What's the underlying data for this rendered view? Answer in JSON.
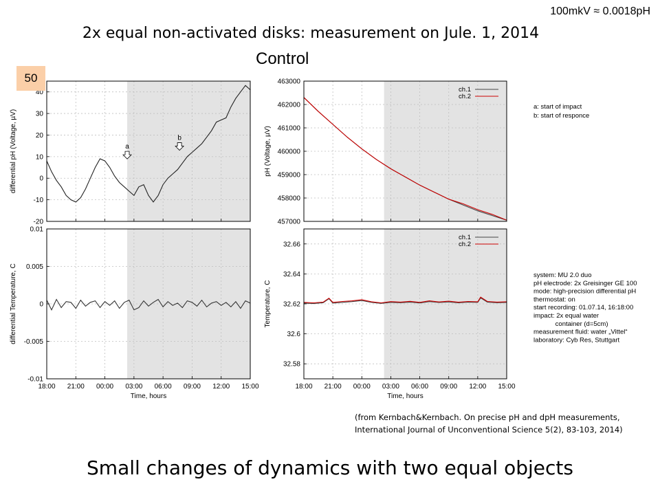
{
  "slide": {
    "scale_note": "100mkV ≈ 0.0018pH",
    "title": "2x equal non-activated disks: measurement on Jule. 1, 2014",
    "subtitle": "Control",
    "slide_number": "50",
    "citation_line1": "(from Kernbach&Kernbach. On precise pH and dpH measurements,",
    "citation_line2": "International Journal of Unconventional Science 5(2), 83-103,  2014)",
    "caption": "Small changes of dynamics with two equal objects"
  },
  "notes": {
    "impact_a": "a: start of impact",
    "impact_b": "b: start of responce",
    "system": [
      "system: MU 2.0 duo",
      "pH electrode: 2x Greisinger GE 100",
      "mode: high-precision differential pH",
      "thermostat: on",
      "start recording: 01.07.14, 16:18:00",
      "impact: 2x equal water",
      "            container (d=5cm)",
      "measurement fluid: water „Vittel“",
      "laboratory: Cyb Res, Stuttgart"
    ]
  },
  "chart_data": [
    {
      "id": "dph-voltage",
      "type": "line",
      "ylabel": "differential pH (Voltage, µV)",
      "x_ticks": [
        "18:00",
        "21:00",
        "00:00",
        "03:00",
        "06:00",
        "09:00",
        "12:00",
        "15:00"
      ],
      "xlim": [
        0,
        21
      ],
      "ylim": [
        -20,
        45
      ],
      "y_ticks": [
        -20,
        -10,
        0,
        10,
        20,
        30,
        40
      ],
      "y_tick_labels": [
        "-20",
        "-10",
        "0",
        "10",
        "20",
        "30",
        "40"
      ],
      "shaded_from": 8.3,
      "annotations": [
        {
          "label": "a",
          "x": 8.3,
          "y": 8
        },
        {
          "label": "b",
          "x": 13.7,
          "y": 12
        }
      ],
      "series": [
        {
          "color": "#222222",
          "x": [
            0,
            0.5,
            1,
            1.5,
            2,
            2.5,
            3,
            3.5,
            4,
            4.5,
            5,
            5.5,
            6,
            6.5,
            7,
            7.5,
            8,
            8.5,
            9,
            9.5,
            10,
            10.5,
            11,
            11.5,
            12,
            12.5,
            13,
            13.5,
            14,
            14.5,
            15,
            15.5,
            16,
            16.5,
            17,
            17.5,
            18,
            18.5,
            19,
            19.5,
            20,
            20.5,
            21
          ],
          "y": [
            8,
            3,
            -1,
            -4,
            -8,
            -10,
            -11,
            -9,
            -5,
            0,
            5,
            9,
            8,
            5,
            1,
            -2,
            -4,
            -6,
            -8,
            -4,
            -3,
            -8,
            -11,
            -8,
            -3,
            0,
            2,
            4,
            7,
            10,
            12,
            14,
            16,
            19,
            22,
            26,
            27,
            28,
            33,
            37,
            40,
            43,
            41
          ]
        }
      ]
    },
    {
      "id": "ph-voltage",
      "type": "line",
      "ylabel": "pH (Voltage, µV)",
      "x_ticks": [
        "18:00",
        "21:00",
        "00:00",
        "03:00",
        "06:00",
        "09:00",
        "12:00",
        "15:00"
      ],
      "xlim": [
        0,
        21
      ],
      "ylim": [
        457000,
        463000
      ],
      "y_ticks": [
        457000,
        458000,
        459000,
        460000,
        461000,
        462000,
        463000
      ],
      "y_tick_labels": [
        "457000",
        "458000",
        "459000",
        "460000",
        "461000",
        "462000",
        "463000"
      ],
      "shaded_from": 8.3,
      "legend": [
        "ch.1",
        "ch.2"
      ],
      "series": [
        {
          "name": "ch.1",
          "color": "#444444",
          "x": [
            0,
            1.5,
            3,
            4.5,
            6,
            7.5,
            9,
            10.5,
            12,
            13.5,
            15,
            16.5,
            18,
            19.5,
            21
          ],
          "y": [
            462300,
            461700,
            461150,
            460600,
            460100,
            459650,
            459250,
            458900,
            458550,
            458250,
            457950,
            457700,
            457450,
            457250,
            457050
          ]
        },
        {
          "name": "ch.2",
          "color": "#cc0000",
          "x": [
            0,
            1.5,
            3,
            4.5,
            6,
            7.5,
            9,
            10.5,
            12,
            13.5,
            15,
            16.5,
            18,
            19.5,
            21
          ],
          "y": [
            462300,
            461700,
            461150,
            460600,
            460100,
            459650,
            459250,
            458900,
            458550,
            458250,
            457950,
            457750,
            457500,
            457300,
            457050
          ]
        }
      ]
    },
    {
      "id": "d-temperature",
      "type": "line",
      "ylabel": "differential Temperature, C",
      "x_ticks": [
        "18:00",
        "21:00",
        "00:00",
        "03:00",
        "06:00",
        "09:00",
        "12:00",
        "15:00"
      ],
      "x_axis_label": "Time, hours",
      "xlim": [
        0,
        21
      ],
      "ylim": [
        -0.01,
        0.01
      ],
      "y_ticks": [
        -0.01,
        -0.005,
        0,
        0.005,
        0.01
      ],
      "y_tick_labels": [
        "-0.01",
        "-0.005",
        "0",
        "0.005",
        "0.01"
      ],
      "shaded_from": 8.3,
      "series": [
        {
          "color": "#333333",
          "x": [
            0,
            0.5,
            1,
            1.5,
            2,
            2.5,
            3,
            3.5,
            4,
            4.5,
            5,
            5.5,
            6,
            6.5,
            7,
            7.5,
            8,
            8.5,
            9,
            9.5,
            10,
            10.5,
            11,
            11.5,
            12,
            12.5,
            13,
            13.5,
            14,
            14.5,
            15,
            15.5,
            16,
            16.5,
            17,
            17.5,
            18,
            18.5,
            19,
            19.5,
            20,
            20.5,
            21
          ],
          "y": [
            0.0005,
            -0.0008,
            0.0006,
            -0.0005,
            0.0003,
            0.0002,
            -0.0006,
            0.0005,
            -0.0003,
            0.0002,
            0.0004,
            -0.0005,
            0.0003,
            -0.0002,
            0.0004,
            -0.0006,
            0.0002,
            0.0005,
            -0.0008,
            -0.0005,
            0.0004,
            -0.0003,
            0.0002,
            0.0006,
            -0.0004,
            0.0003,
            -0.0002,
            0.0001,
            -0.0005,
            0.0004,
            0.0002,
            -0.0003,
            0.0005,
            -0.0004,
            0.0001,
            0.0003,
            -0.0002,
            0.0002,
            -0.0004,
            0.0003,
            -0.0006,
            0.0004,
            0.0001
          ]
        }
      ]
    },
    {
      "id": "temperature",
      "type": "line",
      "ylabel": "Temperature, C",
      "x_ticks": [
        "18:00",
        "21:00",
        "00:00",
        "03:00",
        "06:00",
        "09:00",
        "12:00",
        "15:00"
      ],
      "x_axis_label": "Time, hours",
      "xlim": [
        0,
        21
      ],
      "ylim": [
        32.57,
        32.67
      ],
      "y_ticks": [
        32.58,
        32.6,
        32.62,
        32.64,
        32.66
      ],
      "y_tick_labels": [
        "32.58",
        "32.6",
        "32.62",
        "32.64",
        "32.66"
      ],
      "shaded_from": 8.3,
      "legend": [
        "ch.1",
        "ch.2"
      ],
      "series": [
        {
          "name": "ch.1",
          "color": "#444444",
          "x": [
            0,
            1,
            2,
            2.6,
            3,
            4,
            5,
            6,
            7,
            8,
            9,
            10,
            11,
            12,
            13,
            14,
            15,
            16,
            17,
            18,
            18.3,
            19,
            20,
            21
          ],
          "y": [
            32.6205,
            32.6202,
            32.6208,
            32.6235,
            32.6205,
            32.621,
            32.6215,
            32.6222,
            32.621,
            32.6203,
            32.621,
            32.6208,
            32.6212,
            32.6206,
            32.6215,
            32.6209,
            32.6213,
            32.6207,
            32.6212,
            32.621,
            32.624,
            32.6212,
            32.6208,
            32.621
          ]
        },
        {
          "name": "ch.2",
          "color": "#cc0000",
          "x": [
            0,
            1,
            2,
            2.6,
            3,
            4,
            5,
            6,
            7,
            8,
            9,
            10,
            11,
            12,
            13,
            14,
            15,
            16,
            17,
            18,
            18.3,
            19,
            20,
            21
          ],
          "y": [
            32.621,
            32.6207,
            32.6212,
            32.6238,
            32.621,
            32.6216,
            32.622,
            32.6228,
            32.6214,
            32.6207,
            32.6215,
            32.6212,
            32.6217,
            32.621,
            32.622,
            32.6213,
            32.6218,
            32.6211,
            32.6216,
            32.6214,
            32.6245,
            32.6216,
            32.6212,
            32.6214
          ]
        }
      ]
    }
  ]
}
